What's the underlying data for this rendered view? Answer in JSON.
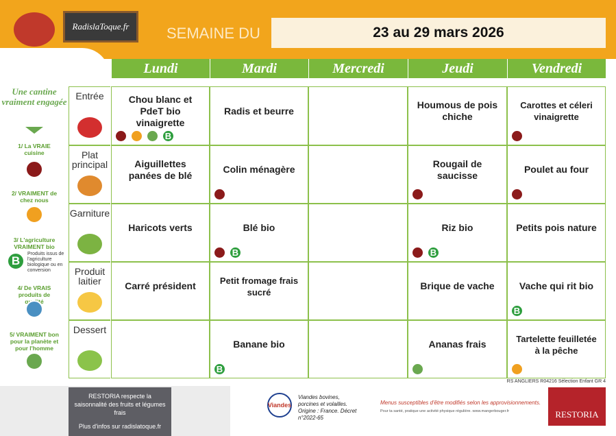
{
  "header": {
    "logo": "RadislaToque.fr",
    "label": "SEMAINE DU",
    "dates": "23 au 29 mars 2026"
  },
  "days": [
    "Lundi",
    "Mardi",
    "Mercredi",
    "Jeudi",
    "Vendredi"
  ],
  "bio_badge": "B",
  "rows": [
    {
      "course": "Entrée",
      "dishes": [
        "Chou blanc et PdeT bio vinaigrette",
        "Radis et beurre",
        null,
        "Houmous de pois chiche",
        "Carottes et céleri vinaigrette"
      ]
    },
    {
      "course": "Plat principal",
      "dishes": [
        "Aiguillettes panées de blé",
        "Colin ménagère",
        null,
        "Rougail de saucisse",
        "Poulet au four"
      ]
    },
    {
      "course": "Garniture",
      "dishes": [
        "Haricots verts",
        "Blé bio",
        null,
        "Riz bio",
        "Petits pois nature"
      ]
    },
    {
      "course": "Produit laitier",
      "dishes": [
        "Carré président",
        "Petit fromage frais sucré",
        null,
        "Brique de vache",
        "Vache qui rit bio"
      ]
    },
    {
      "course": "Dessert",
      "dishes": [
        null,
        "Banane bio",
        null,
        "Ananas frais",
        "Tartelette feuilletée à la pêche"
      ]
    }
  ],
  "sidebar": {
    "title": "Une cantine vraiment engagée",
    "items": [
      "1/ La VRAIE cuisine",
      "2/ VRAIMENT de chez nous",
      "3/ L'agriculture VRAIMENT bio",
      "4/ De VRAIS produits de qualité",
      "5/ VRAIMENT bon pour la planète et pour l'homme"
    ],
    "bio_note": "Produits issus de l'agriculture biologique ou en conversion"
  },
  "reference": "RS ANGLIERS R04216 Sélection Enfant GR 4",
  "footer": {
    "banner_text": "RESTORIA respecte la saisonnalité des fruits et légumes frais",
    "banner_link": "Plus d'infos sur radislatoque.fr",
    "viandes_logo": "Viandes",
    "meat_origin": "Viandes bovines, porcines et volailles. Origine : France. Décret n°2022-65",
    "notice": "Menus susceptibles d'être modifiés selon les approvisionnements.",
    "health": "Pour ta santé, pratique une activité physique régulière. www.mangerbouger.fr",
    "brand": "RESTORIA"
  }
}
